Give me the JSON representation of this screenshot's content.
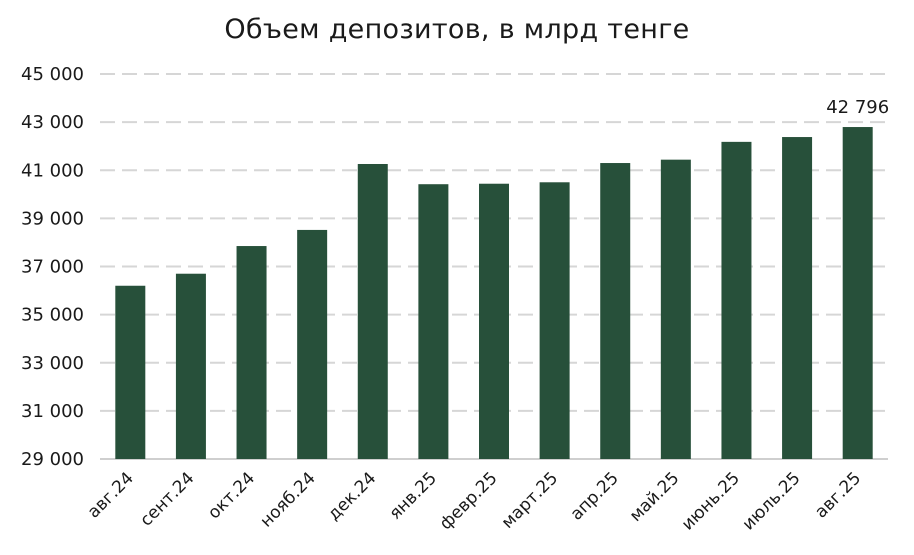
{
  "chart_data": {
    "type": "bar",
    "title": "Объем депозитов, в млрд тенге",
    "categories": [
      "авг.24",
      "сент.24",
      "окт.24",
      "нояб.24",
      "дек.24",
      "янв.25",
      "февр.25",
      "март.25",
      "апр.25",
      "май.25",
      "июнь.25",
      "июль.25",
      "авг.25"
    ],
    "series": [
      {
        "values": [
          36200,
          36700,
          37850,
          38520,
          41260,
          40420,
          40440,
          40500,
          41300,
          41440,
          42180,
          42380,
          42796
        ]
      }
    ],
    "y_ticks": [
      "29 000",
      "31 000",
      "33 000",
      "35 000",
      "37 000",
      "39 000",
      "41 000",
      "43 000",
      "45 000"
    ],
    "ylim": [
      29000,
      45000
    ],
    "data_labels": [
      {
        "category": "авг.25",
        "text": "42 796"
      }
    ],
    "bar_color": "#27503a",
    "grid": true,
    "grid_color": "#d6d6d6",
    "legend": "none"
  }
}
